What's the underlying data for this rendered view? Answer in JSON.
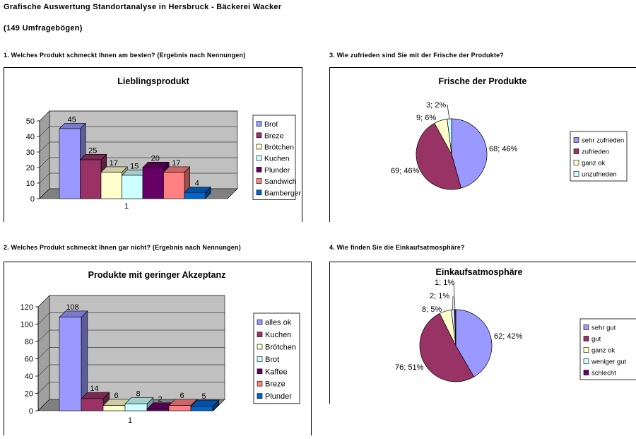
{
  "header": {
    "title": "Grafische Auswertung Standortanalyse in Hersbruck - Bäckerei Wacker",
    "subtitle": "(149 Umfragebögen)"
  },
  "questions": {
    "q1": "1. Welches Produkt schmeckt Ihnen am besten? (Ergebnis nach Nennungen)",
    "q2": "2. Welches Produkt schmeckt Ihnen gar nicht? (Ergebnis nach Nennungen)",
    "q3": "3. Wie zufrieden sind Sie mit der Frische der Produkte?",
    "q4": "4. Wie finden Sie die Einkaufsatmosphäre?"
  },
  "colors": {
    "plot_wall": "#c0c0c0",
    "plot_floor": "#808080",
    "palette": [
      "#9999ff",
      "#993366",
      "#ffffcc",
      "#ccffff",
      "#660066",
      "#ff8080",
      "#0066cc"
    ]
  },
  "chart_data": [
    {
      "id": "c1",
      "type": "bar",
      "title": "Lieblingsprodukt",
      "categories": [
        "1"
      ],
      "ylim": [
        0,
        50
      ],
      "yticks": [
        "0",
        "10",
        "20",
        "30",
        "40",
        "50"
      ],
      "series": [
        {
          "name": "Brot",
          "values": [
            45
          ]
        },
        {
          "name": "Breze",
          "values": [
            25
          ]
        },
        {
          "name": "Brötchen",
          "values": [
            17
          ]
        },
        {
          "name": "Kuchen",
          "values": [
            15
          ]
        },
        {
          "name": "Plunder",
          "values": [
            20
          ]
        },
        {
          "name": "Sandwich",
          "values": [
            17
          ]
        },
        {
          "name": "Bamberger",
          "values": [
            4
          ]
        }
      ],
      "grid": true,
      "legend": "right"
    },
    {
      "id": "c2",
      "type": "bar",
      "title": "Produkte mit geringer Akzeptanz",
      "categories": [
        "1"
      ],
      "ylim": [
        0,
        120
      ],
      "yticks": [
        "0",
        "20",
        "40",
        "60",
        "80",
        "100",
        "120"
      ],
      "series": [
        {
          "name": "alles ok",
          "values": [
            108
          ]
        },
        {
          "name": "Kuchen",
          "values": [
            14
          ]
        },
        {
          "name": "Brötchen",
          "values": [
            6
          ]
        },
        {
          "name": "Brot",
          "values": [
            8
          ]
        },
        {
          "name": "Kaffee",
          "values": [
            2
          ]
        },
        {
          "name": "Breze",
          "values": [
            6
          ]
        },
        {
          "name": "Plunder",
          "values": [
            5
          ]
        }
      ],
      "grid": true,
      "legend": "right"
    },
    {
      "id": "c3",
      "type": "pie",
      "title": "Frische der Produkte",
      "slices": [
        {
          "name": "sehr zufrieden",
          "value": 68,
          "label": "68; 46%"
        },
        {
          "name": "zufrieden",
          "value": 69,
          "label": "69; 46%"
        },
        {
          "name": "ganz ok",
          "value": 9,
          "label": "9; 6%"
        },
        {
          "name": "unzufrieden",
          "value": 3,
          "label": "3; 2%"
        }
      ],
      "legend": "right"
    },
    {
      "id": "c4",
      "type": "pie",
      "title": "Einkaufsatmosphäre",
      "slices": [
        {
          "name": "sehr gut",
          "value": 62,
          "label": "62; 42%"
        },
        {
          "name": "gut",
          "value": 76,
          "label": "76; 51%"
        },
        {
          "name": "ganz ok",
          "value": 8,
          "label": "8; 5%"
        },
        {
          "name": "weniger gut",
          "value": 2,
          "label": "2; 1%"
        },
        {
          "name": "schlecht",
          "value": 1,
          "label": "1; 1%"
        }
      ],
      "legend": "right"
    }
  ]
}
